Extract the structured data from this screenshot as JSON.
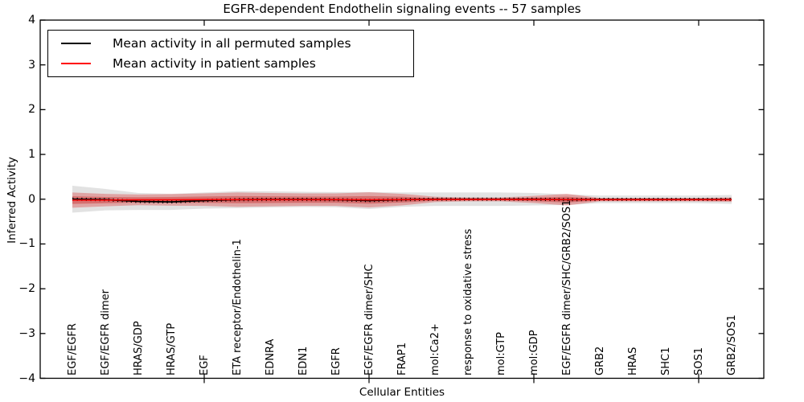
{
  "chart_data": {
    "type": "line",
    "title": "EGFR-dependent Endothelin signaling events -- 57 samples",
    "xlabel": "Cellular Entities",
    "ylabel": "Inferred Activity",
    "ylim": [
      -4,
      4
    ],
    "yticks": [
      4,
      3,
      2,
      1,
      0,
      -1,
      -2,
      -3,
      -4
    ],
    "ytick_labels": [
      "4",
      "3",
      "2",
      "1",
      "0",
      "−1",
      "−2",
      "−3",
      "−4"
    ],
    "grid": false,
    "legend_position": "upper left",
    "x_marker_tick_indices": [
      4,
      9,
      14,
      19
    ],
    "categories": [
      "EGF/EGFR",
      "EGF/EGFR dimer",
      "HRAS/GDP",
      "HRAS/GTP",
      "EGF",
      "ETA receptor/Endothelin-1",
      "EDNRA",
      "EDN1",
      "EGFR",
      "EGF/EGFR dimer/SHC",
      "FRAP1",
      "mol:Ca2+",
      "response to oxidative stress",
      "mol:GTP",
      "mol:GDP",
      "EGF/EGFR dimer/SHC/GRB2/SOS1",
      "GRB2",
      "HRAS",
      "SHC1",
      "SOS1",
      "GRB2/SOS1"
    ],
    "series": [
      {
        "name": "Mean activity in all permuted samples",
        "color": "#000000",
        "band_color": "rgba(125,125,125,0.22)",
        "mean": [
          0.0,
          -0.01,
          -0.05,
          -0.06,
          -0.03,
          -0.01,
          -0.005,
          -0.005,
          -0.01,
          -0.03,
          -0.01,
          0.0,
          0.0,
          0.0,
          0.0,
          -0.01,
          -0.005,
          -0.005,
          -0.005,
          -0.005,
          -0.005
        ],
        "std": [
          0.3,
          0.24,
          0.19,
          0.18,
          0.18,
          0.19,
          0.18,
          0.17,
          0.17,
          0.19,
          0.16,
          0.15,
          0.15,
          0.15,
          0.14,
          0.12,
          0.085,
          0.085,
          0.085,
          0.085,
          0.1
        ]
      },
      {
        "name": "Mean activity in patient samples",
        "color": "#ff0000",
        "band_color": "rgba(218,35,35,0.32)",
        "band_inner_color": "rgba(200,25,25,0.38)",
        "mean": [
          -0.02,
          -0.02,
          -0.015,
          -0.015,
          -0.01,
          -0.01,
          -0.01,
          -0.01,
          -0.01,
          -0.015,
          -0.01,
          -0.005,
          -0.005,
          -0.005,
          -0.005,
          -0.01,
          -0.01,
          -0.01,
          -0.01,
          -0.01,
          -0.01
        ],
        "std": [
          0.17,
          0.14,
          0.12,
          0.13,
          0.14,
          0.16,
          0.15,
          0.14,
          0.14,
          0.17,
          0.13,
          0.06,
          0.045,
          0.045,
          0.08,
          0.13,
          0.04,
          0.04,
          0.04,
          0.04,
          0.05
        ]
      }
    ]
  }
}
